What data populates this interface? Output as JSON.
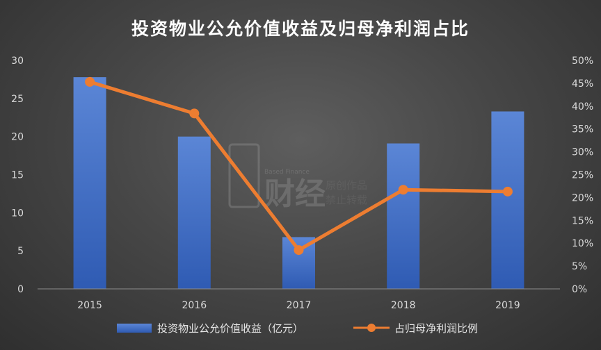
{
  "chart_data": {
    "type": "bar",
    "title": "投资物业公允价值收益及归母净利润占比",
    "categories": [
      "2015",
      "2016",
      "2017",
      "2018",
      "2019"
    ],
    "series": [
      {
        "name": "投资物业公允价值收益（亿元）",
        "type": "bar",
        "axis": "left",
        "values": [
          27.8,
          20.0,
          6.8,
          19.1,
          23.3
        ]
      },
      {
        "name": "占归母净利润比例",
        "type": "line",
        "axis": "right",
        "values": [
          45.3,
          38.4,
          8.5,
          21.7,
          21.3
        ]
      }
    ],
    "y_left": {
      "ylim": [
        0,
        30
      ],
      "ticks": [
        "0",
        "5",
        "10",
        "15",
        "20",
        "25",
        "30"
      ]
    },
    "y_right": {
      "ylim": [
        0,
        50
      ],
      "ticks": [
        "0%",
        "5%",
        "10%",
        "15%",
        "20%",
        "25%",
        "30%",
        "35%",
        "40%",
        "45%",
        "50%"
      ]
    },
    "grid": false,
    "legend": "bottom",
    "colors": {
      "bar_top": "#5b86d6",
      "bar_bottom": "#2f5bb3",
      "line": "#ed7d31"
    }
  },
  "watermark": {
    "line1": "原创作品",
    "line2": "禁止转载",
    "brand": "财经",
    "small": "Based Finance"
  }
}
